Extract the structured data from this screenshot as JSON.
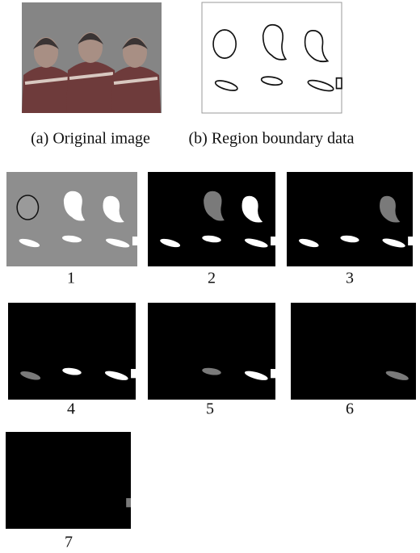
{
  "figure": {
    "captions": [
      "(a) Original image",
      "(b) Region boundary data"
    ],
    "panels": [
      "1",
      "2",
      "3",
      "4",
      "5",
      "6",
      "7"
    ]
  }
}
